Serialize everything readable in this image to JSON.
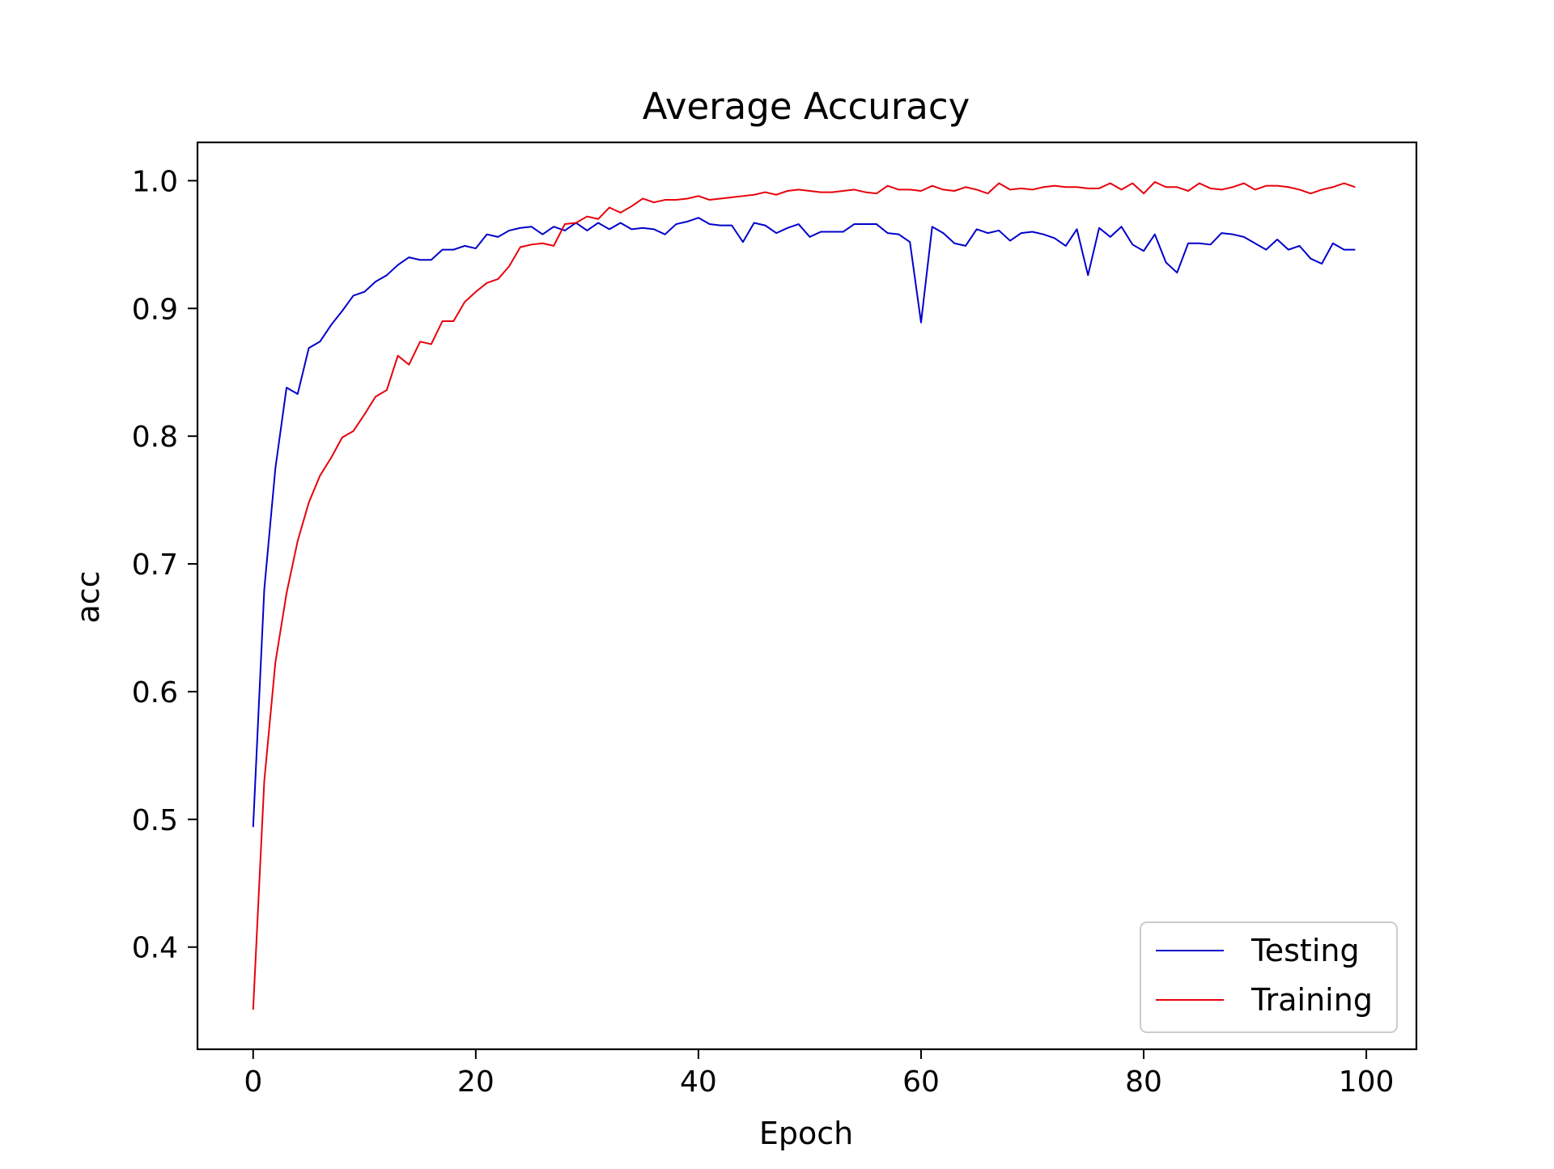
{
  "chart_data": {
    "type": "line",
    "title": "Average Accuracy",
    "xlabel": "Epoch",
    "ylabel": "acc",
    "xlim": [
      -5,
      104.5
    ],
    "ylim": [
      0.32,
      1.03
    ],
    "xticks": [
      0,
      20,
      40,
      60,
      80,
      100
    ],
    "xtick_labels": [
      "0",
      "20",
      "40",
      "60",
      "80",
      "100"
    ],
    "yticks": [
      0.4,
      0.5,
      0.6,
      0.7,
      0.8,
      0.9,
      1.0
    ],
    "ytick_labels": [
      "0.4",
      "0.5",
      "0.6",
      "0.7",
      "0.8",
      "0.9",
      "1.0"
    ],
    "grid": false,
    "legend_position": "lower-right",
    "x": [
      0,
      1,
      2,
      3,
      4,
      5,
      6,
      7,
      8,
      9,
      10,
      11,
      12,
      13,
      14,
      15,
      16,
      17,
      18,
      19,
      20,
      21,
      22,
      23,
      24,
      25,
      26,
      27,
      28,
      29,
      30,
      31,
      32,
      33,
      34,
      35,
      36,
      37,
      38,
      39,
      40,
      41,
      42,
      43,
      44,
      45,
      46,
      47,
      48,
      49,
      50,
      51,
      52,
      53,
      54,
      55,
      56,
      57,
      58,
      59,
      60,
      61,
      62,
      63,
      64,
      65,
      66,
      67,
      68,
      69,
      70,
      71,
      72,
      73,
      74,
      75,
      76,
      77,
      78,
      79,
      80,
      81,
      82,
      83,
      84,
      85,
      86,
      87,
      88,
      89,
      90,
      91,
      92,
      93,
      94,
      95,
      96,
      97,
      98,
      99
    ],
    "series": [
      {
        "name": "Testing",
        "color": "#0000cc",
        "values": [
          0.494,
          0.68,
          0.775,
          0.838,
          0.833,
          0.869,
          0.874,
          0.887,
          0.898,
          0.91,
          0.913,
          0.921,
          0.926,
          0.934,
          0.94,
          0.938,
          0.938,
          0.946,
          0.946,
          0.949,
          0.947,
          0.958,
          0.956,
          0.961,
          0.963,
          0.964,
          0.958,
          0.964,
          0.961,
          0.967,
          0.961,
          0.967,
          0.962,
          0.967,
          0.962,
          0.963,
          0.962,
          0.958,
          0.966,
          0.968,
          0.971,
          0.966,
          0.965,
          0.965,
          0.952,
          0.967,
          0.965,
          0.959,
          0.963,
          0.966,
          0.956,
          0.96,
          0.96,
          0.96,
          0.966,
          0.966,
          0.966,
          0.959,
          0.958,
          0.952,
          0.889,
          0.964,
          0.959,
          0.951,
          0.949,
          0.962,
          0.959,
          0.961,
          0.953,
          0.959,
          0.96,
          0.958,
          0.955,
          0.949,
          0.962,
          0.926,
          0.963,
          0.956,
          0.964,
          0.95,
          0.945,
          0.958,
          0.936,
          0.928,
          0.951,
          0.951,
          0.95,
          0.959,
          0.958,
          0.956,
          0.951,
          0.946,
          0.954,
          0.946,
          0.949,
          0.939,
          0.935,
          0.951,
          0.946,
          0.946
        ]
      },
      {
        "name": "Training",
        "color": "#e8000b",
        "values": [
          0.351,
          0.53,
          0.623,
          0.677,
          0.718,
          0.748,
          0.769,
          0.783,
          0.799,
          0.804,
          0.817,
          0.831,
          0.836,
          0.863,
          0.856,
          0.874,
          0.872,
          0.89,
          0.89,
          0.905,
          0.913,
          0.92,
          0.923,
          0.933,
          0.948,
          0.95,
          0.951,
          0.949,
          0.966,
          0.967,
          0.972,
          0.97,
          0.979,
          0.975,
          0.98,
          0.986,
          0.983,
          0.985,
          0.985,
          0.986,
          0.988,
          0.985,
          0.986,
          0.987,
          0.988,
          0.989,
          0.991,
          0.989,
          0.992,
          0.993,
          0.992,
          0.991,
          0.991,
          0.992,
          0.993,
          0.991,
          0.99,
          0.996,
          0.993,
          0.993,
          0.992,
          0.996,
          0.993,
          0.992,
          0.995,
          0.993,
          0.99,
          0.998,
          0.993,
          0.994,
          0.993,
          0.995,
          0.996,
          0.995,
          0.995,
          0.994,
          0.994,
          0.998,
          0.993,
          0.998,
          0.99,
          0.999,
          0.995,
          0.995,
          0.992,
          0.998,
          0.994,
          0.993,
          0.995,
          0.998,
          0.993,
          0.996,
          0.996,
          0.995,
          0.993,
          0.99,
          0.993,
          0.995,
          0.998,
          0.995
        ]
      }
    ]
  }
}
